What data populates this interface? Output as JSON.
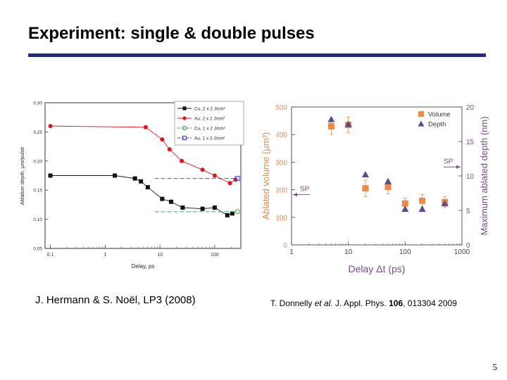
{
  "slide": {
    "title": "Experiment: single & double pulses",
    "caption_left": "J. Hermann & S. Noël, LP3 (2008)",
    "caption_right_prefix": "T. Donnelly ",
    "caption_right_etal": "et al.",
    "caption_right_journal": " J. Appl. Phys. ",
    "caption_right_volume": "106",
    "caption_right_rest": ", 013304 2009",
    "page_number": "5"
  },
  "colors": {
    "rule": "#232b7a",
    "cu_double": "#111111",
    "au_double": "#e0141b",
    "cu_single": "#27a844",
    "au_single": "#2a3bd6",
    "volume": "#f08a44",
    "depth": "#5d4a8c",
    "right_axis": "#7a4b8a",
    "left_axis": "#f08a44"
  },
  "chart_data": [
    {
      "type": "scatter",
      "xscale": "log",
      "xlabel": "Delay, ps",
      "ylabel": "Ablation depth, µm/pulse",
      "xlim": [
        0.08,
        300
      ],
      "ylim": [
        0.05,
        0.3
      ],
      "xticks": [
        "0.1",
        "1",
        "10",
        "100"
      ],
      "yticks": [
        "0.05",
        "0.10",
        "0.15",
        "0.20",
        "0.25",
        "0.30"
      ],
      "legend_position": "top-right",
      "series": [
        {
          "name": "Cu, 2 x 2 J/cm²",
          "marker": "square",
          "line": "solid",
          "x": [
            0.1,
            1.5,
            3.5,
            4.5,
            6,
            11,
            16,
            26,
            60,
            100,
            170,
            210
          ],
          "y": [
            0.175,
            0.175,
            0.17,
            0.165,
            0.155,
            0.135,
            0.13,
            0.12,
            0.118,
            0.12,
            0.107,
            0.11
          ]
        },
        {
          "name": "Au, 2 x 2 J/cm²",
          "marker": "circle",
          "line": "solid",
          "x": [
            0.1,
            5.5,
            11,
            15,
            25,
            60,
            100,
            190,
            240
          ],
          "y": [
            0.26,
            0.258,
            0.237,
            0.22,
            0.2,
            0.185,
            0.175,
            0.162,
            0.168
          ]
        },
        {
          "name": "Cu, 1 x 2 J/cm²",
          "marker": "open-circle",
          "line": "dashed",
          "x": [
            8,
            260
          ],
          "y": [
            0.113,
            0.113
          ]
        },
        {
          "name": "Au, 1 x 2 J/cm²",
          "marker": "open-square",
          "line": "dashed",
          "x": [
            8,
            260
          ],
          "y": [
            0.17,
            0.17
          ]
        }
      ]
    },
    {
      "type": "scatter",
      "xscale": "log",
      "xlabel": "Delay Δt (ps)",
      "ylabel_left": "Ablated volume (µm³)",
      "ylabel_right": "Maximum ablated depth (nm)",
      "xlim": [
        1,
        1000
      ],
      "ylim_left": [
        0,
        500
      ],
      "ylim_right": [
        0,
        20
      ],
      "xticks": [
        "1",
        "10",
        "100",
        "1000"
      ],
      "yticks_left": [
        "0",
        "100",
        "200",
        "300",
        "400",
        "500"
      ],
      "yticks_right": [
        "0",
        "5",
        "10",
        "15",
        "20"
      ],
      "legend_position": "top-right",
      "series": [
        {
          "name": "Volume",
          "axis": "left",
          "marker": "square",
          "x": [
            5,
            10,
            20,
            50,
            100,
            200,
            500
          ],
          "y": [
            430,
            435,
            205,
            210,
            150,
            160,
            155
          ],
          "err": [
            30,
            28,
            30,
            25,
            20,
            22,
            20
          ]
        },
        {
          "name": "Depth",
          "axis": "right",
          "marker": "triangle",
          "x": [
            5,
            10,
            20,
            50,
            100,
            200,
            500
          ],
          "y": [
            18.2,
            17.5,
            10.2,
            9.2,
            5.2,
            5.2,
            6.0
          ]
        }
      ],
      "annotations": [
        {
          "text": "SP",
          "axis": "left",
          "y": 200,
          "side": "left"
        },
        {
          "text": "SP",
          "axis": "right",
          "y": 11.3,
          "side": "right"
        }
      ]
    }
  ]
}
